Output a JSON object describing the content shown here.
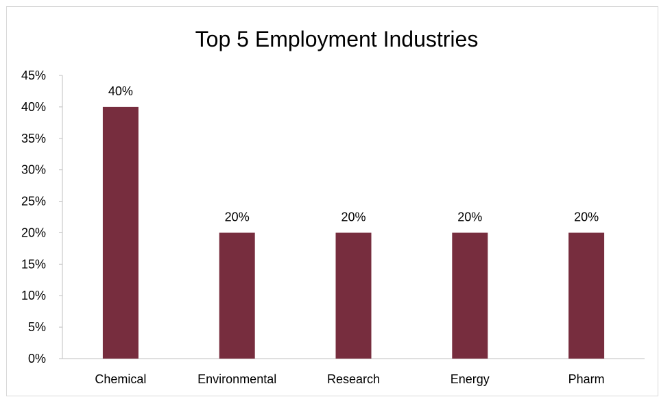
{
  "chart_data": {
    "type": "bar",
    "title": "Top 5 Employment Industries",
    "xlabel": "",
    "ylabel": "",
    "categories": [
      "Chemical",
      "Environmental",
      "Research",
      "Energy",
      "Pharm"
    ],
    "values": [
      0.4,
      0.2,
      0.2,
      0.2,
      0.2
    ],
    "data_labels": [
      "40%",
      "20%",
      "20%",
      "20%",
      "20%"
    ],
    "ylim": [
      0,
      0.45
    ],
    "y_ticks": [
      0,
      0.05,
      0.1,
      0.15,
      0.2,
      0.25,
      0.3,
      0.35,
      0.4,
      0.45
    ],
    "y_tick_labels": [
      "0%",
      "5%",
      "10%",
      "15%",
      "20%",
      "25%",
      "30%",
      "35%",
      "40%",
      "45%"
    ],
    "grid": false,
    "legend": "none",
    "bar_color": "#772d3e",
    "axis_color": "#bfbfbf"
  }
}
